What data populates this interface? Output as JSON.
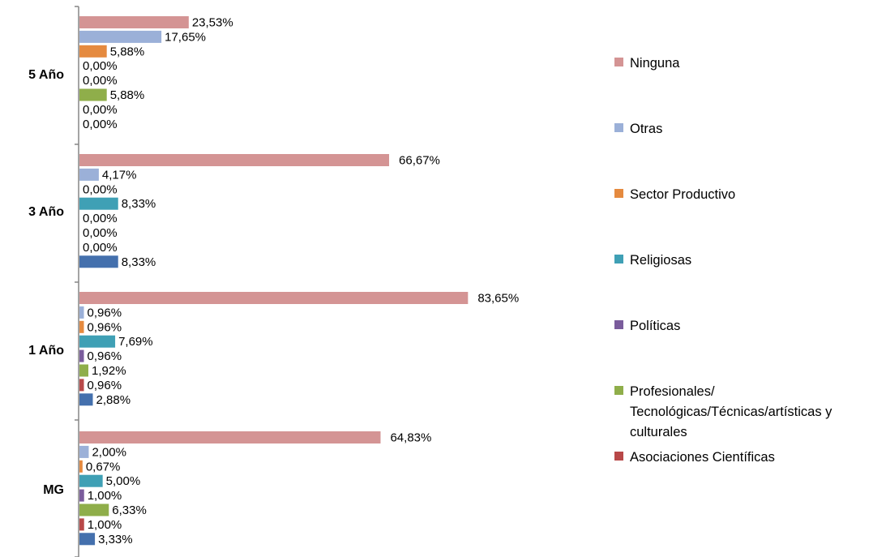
{
  "chart_data": {
    "type": "bar",
    "orientation": "horizontal",
    "categories": [
      "5 Año",
      "3 Año",
      "1 Año",
      "MG"
    ],
    "series": [
      {
        "name": "Ninguna",
        "color": "#d49494",
        "values": [
          23.53,
          66.67,
          83.65,
          64.83
        ],
        "labels": [
          "23,53%",
          "66,67%",
          "83,65%",
          "64,83%"
        ]
      },
      {
        "name": "Otras",
        "color": "#9bb0d8",
        "values": [
          17.65,
          4.17,
          0.96,
          2.0
        ],
        "labels": [
          "17,65%",
          "4,17%",
          "0,96%",
          "2,00%"
        ]
      },
      {
        "name": "Sector Productivo",
        "color": "#e58a3f",
        "values": [
          5.88,
          0.0,
          0.96,
          0.67
        ],
        "labels": [
          "5,88%",
          "0,00%",
          "0,96%",
          "0,67%"
        ]
      },
      {
        "name": "Religiosas",
        "color": "#3fa0b5",
        "values": [
          0.0,
          8.33,
          7.69,
          5.0
        ],
        "labels": [
          "0,00%",
          "8,33%",
          "7,69%",
          "5,00%"
        ]
      },
      {
        "name": "Políticas",
        "color": "#7a5c9c",
        "values": [
          0.0,
          0.0,
          0.96,
          1.0
        ],
        "labels": [
          "0,00%",
          "0,00%",
          "0,96%",
          "1,00%"
        ]
      },
      {
        "name": "Profesionales/ Tecnológicas/Técnicas/artísticas y culturales",
        "color": "#8fae4a",
        "values": [
          5.88,
          0.0,
          1.92,
          6.33
        ],
        "labels": [
          "5,88%",
          "0,00%",
          "1,92%",
          "6,33%"
        ]
      },
      {
        "name": "Asociaciones Científicas",
        "color": "#b84848",
        "values": [
          0.0,
          0.0,
          0.96,
          1.0
        ],
        "labels": [
          "0,00%",
          "0,00%",
          "0,96%",
          "1,00%"
        ]
      },
      {
        "name": "",
        "color": "#4470ad",
        "values": [
          0.0,
          8.33,
          2.88,
          3.33
        ],
        "labels": [
          "0,00%",
          "8,33%",
          "2,88%",
          "3,33%"
        ]
      }
    ],
    "xlim": [
      0,
      100
    ],
    "grid": false,
    "legend_position": "right",
    "title": "",
    "xlabel": "",
    "ylabel": ""
  }
}
